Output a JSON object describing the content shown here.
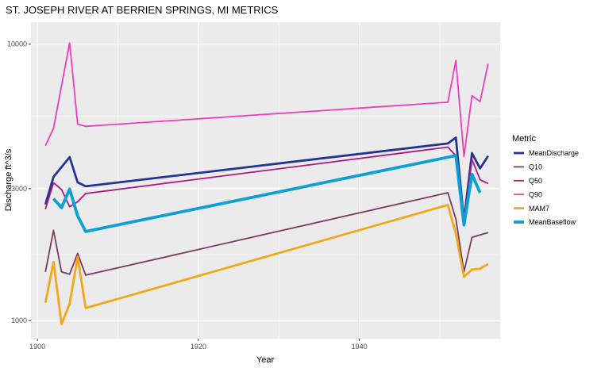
{
  "chart_data": {
    "type": "line",
    "title": "ST. JOSEPH RIVER AT BERRIEN SPRINGS, MI  METRICS",
    "xlabel": "Year",
    "ylabel": "Discharge ft^3/s",
    "xlim": [
      1899.2,
      1957.5
    ],
    "ylim": [
      860,
      12000
    ],
    "y_scale": "log",
    "x_ticks": [
      1900,
      1920,
      1940
    ],
    "x_tick_labels": [
      "1900",
      "1920",
      "1940"
    ],
    "y_ticks": [
      1000,
      3000,
      10000
    ],
    "y_tick_labels": [
      "1000",
      "3000",
      "10000"
    ],
    "grid": true,
    "legend": {
      "title": "Metric",
      "position": "right"
    },
    "series": [
      {
        "name": "MeanDischarge",
        "color": "#253494",
        "width": 2.8,
        "x": [
          1901,
          1902,
          1904,
          1905,
          1906,
          1951,
          1952,
          1953,
          1954,
          1955,
          1956
        ],
        "y": [
          2630,
          3310,
          3900,
          3160,
          3060,
          4370,
          4590,
          2300,
          4030,
          3550,
          3940
        ]
      },
      {
        "name": "Q10",
        "color": "#7a3b5e",
        "width": 1.8,
        "x": [
          1901,
          1902,
          1903,
          1904,
          1905,
          1906,
          1951,
          1952,
          1953,
          1954,
          1955,
          1956
        ],
        "y": [
          1500,
          2120,
          1500,
          1470,
          1750,
          1460,
          2900,
          2330,
          1500,
          2000,
          2040,
          2080
        ]
      },
      {
        "name": "Q50",
        "color": "#b0177f",
        "width": 1.8,
        "x": [
          1901,
          1902,
          1903,
          1904,
          1905,
          1906,
          1951,
          1952,
          1953,
          1954,
          1955,
          1956
        ],
        "y": [
          2530,
          3150,
          2980,
          2580,
          2690,
          2880,
          4240,
          3950,
          2200,
          3830,
          3230,
          3130
        ]
      },
      {
        "name": "Q90",
        "color": "#f03cbc",
        "width": 1.8,
        "x": [
          1901,
          1902,
          1904,
          1905,
          1906,
          1951,
          1952,
          1953,
          1954,
          1955,
          1956
        ],
        "y": [
          4290,
          4960,
          10100,
          5130,
          5040,
          6160,
          8730,
          3920,
          6510,
          6190,
          8500
        ]
      },
      {
        "name": "MAM7",
        "color": "#f2a81d",
        "width": 2.8,
        "x": [
          1901,
          1902,
          1903,
          1904,
          1905,
          1906,
          1951,
          1952,
          1953,
          1954,
          1955,
          1956
        ],
        "y": [
          1160,
          1630,
          970,
          1150,
          1700,
          1110,
          2620,
          2060,
          1440,
          1530,
          1540,
          1600
        ]
      },
      {
        "name": "MeanBaseflow",
        "color": "#0ea0d4",
        "width": 3.8,
        "x": [
          1902,
          1903,
          1904,
          1905,
          1906,
          1952,
          1953,
          1954,
          1955
        ],
        "y": [
          2760,
          2560,
          2990,
          2390,
          2100,
          3950,
          2220,
          3380,
          2900
        ]
      }
    ]
  }
}
